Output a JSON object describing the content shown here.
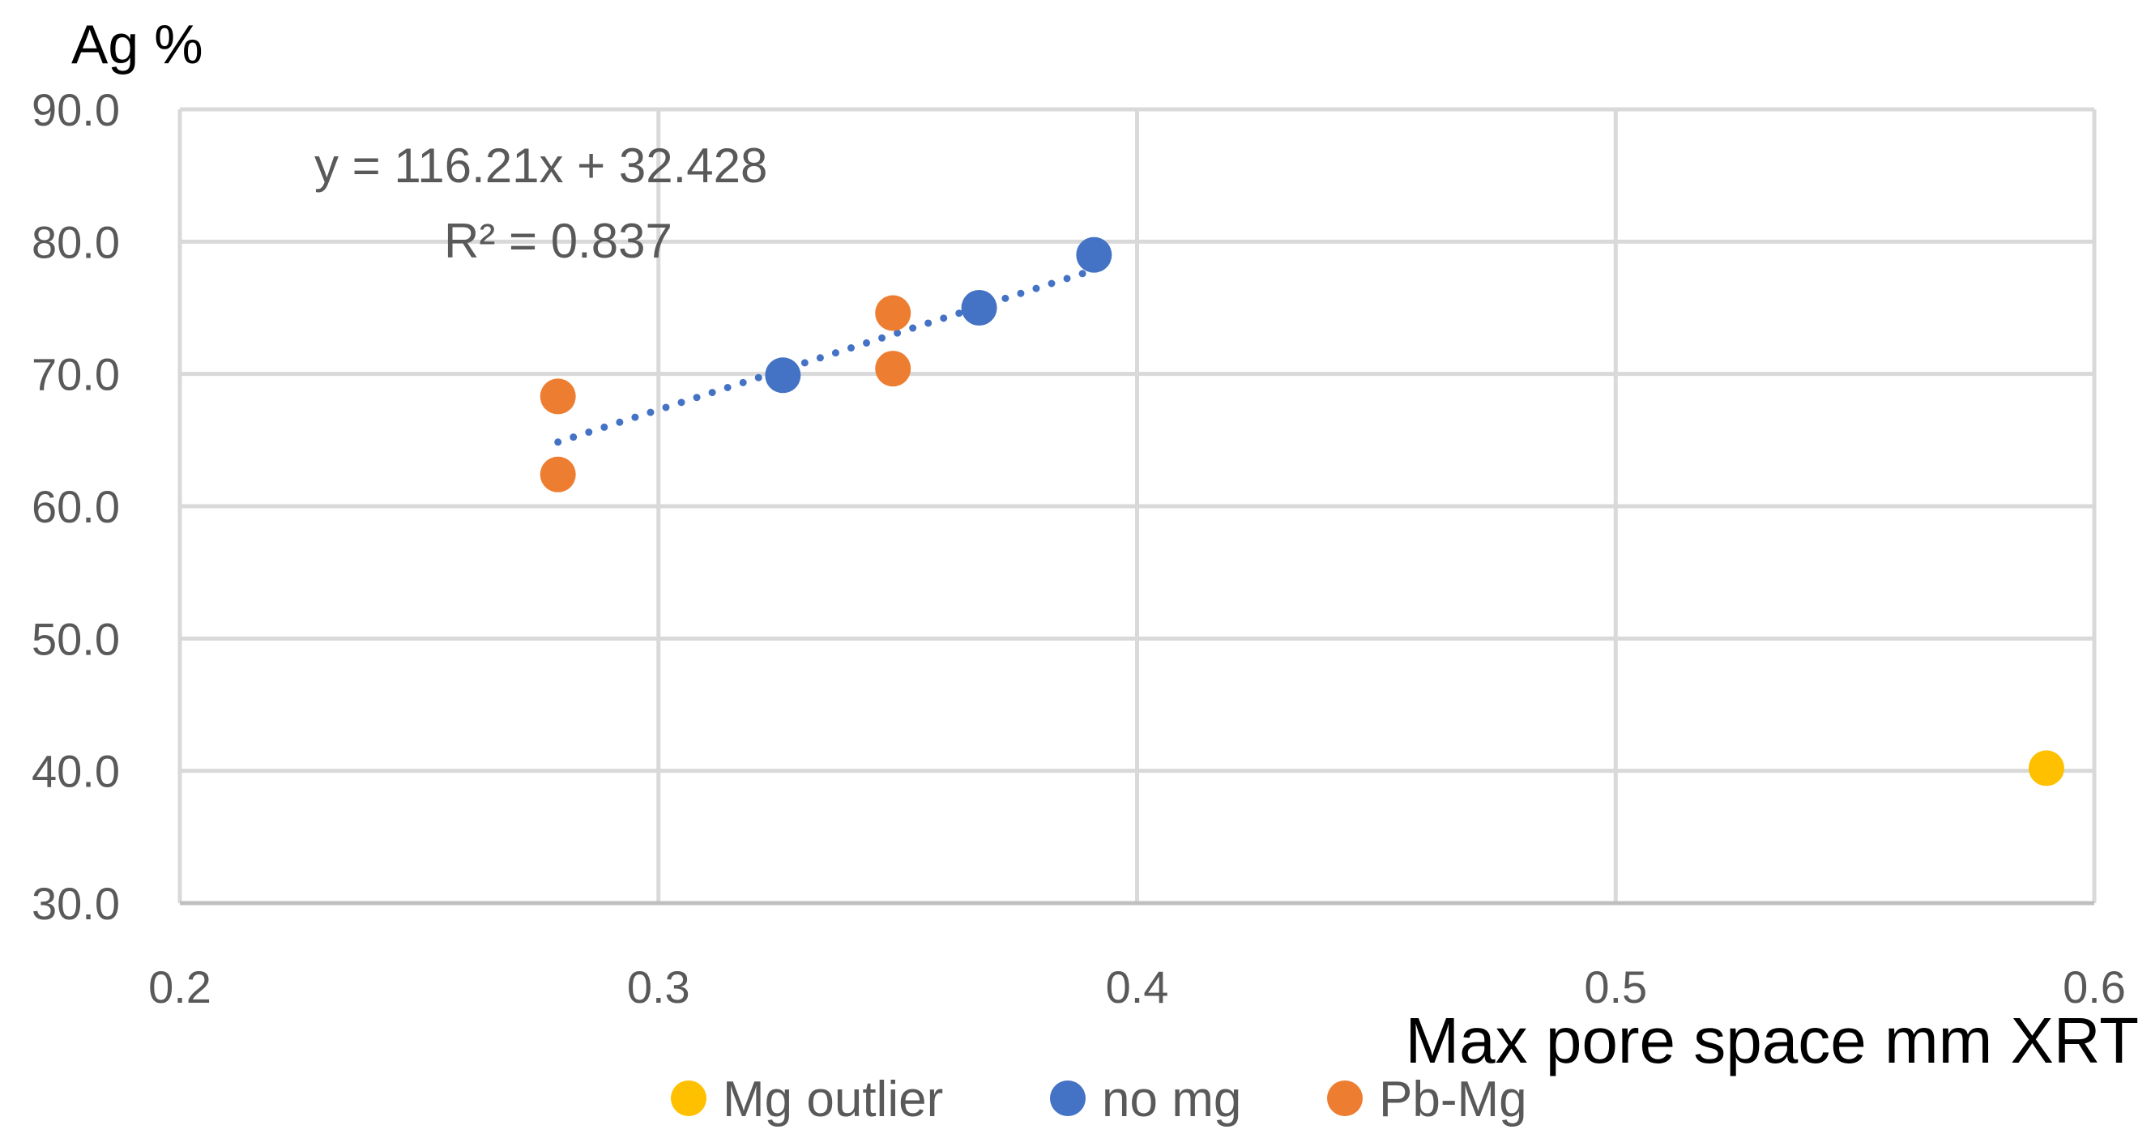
{
  "chart_data": {
    "type": "scatter",
    "title": "",
    "xlabel": "Max pore space mm XRT",
    "ylabel": "Ag %",
    "xlim": [
      0.2,
      0.6
    ],
    "ylim": [
      30.0,
      90.0
    ],
    "x_ticks": [
      "0.2",
      "0.3",
      "0.4",
      "0.5",
      "0.6"
    ],
    "y_ticks": [
      "30.0",
      "40.0",
      "50.0",
      "60.0",
      "70.0",
      "80.0",
      "90.0"
    ],
    "grid": true,
    "legend_position": "bottom",
    "series": [
      {
        "name": "Mg outlier",
        "color": "#FFC000",
        "points": [
          {
            "x": 0.59,
            "y": 40.2
          }
        ]
      },
      {
        "name": "no mg",
        "color": "#4472C4",
        "points": [
          {
            "x": 0.326,
            "y": 69.9
          },
          {
            "x": 0.367,
            "y": 75.0
          },
          {
            "x": 0.391,
            "y": 79.0
          }
        ]
      },
      {
        "name": "Pb-Mg",
        "color": "#ED7D31",
        "points": [
          {
            "x": 0.279,
            "y": 68.3
          },
          {
            "x": 0.279,
            "y": 62.4
          },
          {
            "x": 0.349,
            "y": 74.6
          },
          {
            "x": 0.349,
            "y": 70.4
          }
        ]
      }
    ],
    "trendline": {
      "series": "no mg",
      "color": "#4472C4",
      "slope": 116.21,
      "intercept": 32.428,
      "x_range": [
        0.279,
        0.391
      ],
      "equation": "y = 116.21x + 32.428",
      "r_squared": "R² = 0.837"
    }
  }
}
